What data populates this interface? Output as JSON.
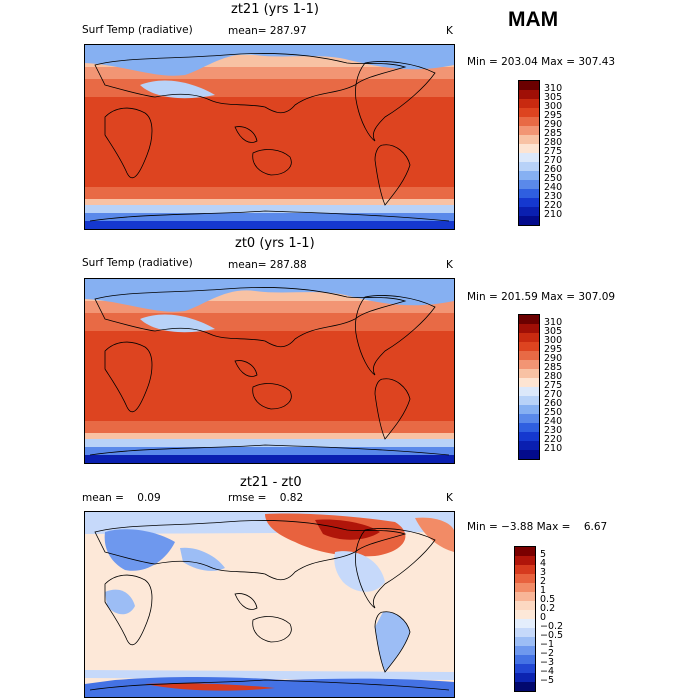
{
  "season": "MAM",
  "units": "K",
  "panels": [
    {
      "title": "zt21 (yrs 1-1)",
      "field": "Surf Temp (radiative)",
      "mean_text": "mean= 287.97",
      "minmax_text": "Min = 203.04 Max = 307.43",
      "kind": "abs",
      "colorbar_labels": [
        "310",
        "305",
        "300",
        "295",
        "290",
        "285",
        "280",
        "275",
        "270",
        "260",
        "250",
        "240",
        "230",
        "220",
        "210"
      ]
    },
    {
      "title": "zt0 (yrs 1-1)",
      "field": "Surf Temp (radiative)",
      "mean_text": "mean= 287.88",
      "minmax_text": "Min = 201.59 Max = 307.09",
      "kind": "abs",
      "colorbar_labels": [
        "310",
        "305",
        "300",
        "295",
        "290",
        "285",
        "280",
        "275",
        "270",
        "260",
        "250",
        "240",
        "230",
        "220",
        "210"
      ]
    },
    {
      "title": "zt21 - zt0",
      "mean_text": "mean =    0.09",
      "rmse_text": "rmse =    0.82",
      "minmax_text": "Min = −3.88 Max =    6.67",
      "kind": "diff",
      "colorbar_labels": [
        "5",
        "4",
        "3",
        "2",
        "1",
        "0.5",
        "0.2",
        "0",
        "−0.2",
        "−0.5",
        "−1",
        "−2",
        "−3",
        "−4",
        "−5"
      ]
    }
  ],
  "colors": {
    "abs_scale": [
      "#6b0000",
      "#a00f06",
      "#c82a10",
      "#dd4420",
      "#e86a45",
      "#f29574",
      "#f8c2a4",
      "#fde4d2",
      "#dce8fa",
      "#b8d2f8",
      "#86b0f2",
      "#5a89ea",
      "#2f5fe0",
      "#1538cf",
      "#0a1fb0",
      "#030b8c"
    ],
    "diff_scale": [
      "#7a0000",
      "#b0150a",
      "#d63a1e",
      "#e8623e",
      "#f28b66",
      "#f8b597",
      "#fcd8c2",
      "#fde8d8",
      "#e4eefc",
      "#c6d9fa",
      "#9cbdf5",
      "#6e98ee",
      "#4472e4",
      "#2247d3",
      "#0c24b0",
      "#02096e"
    ],
    "coastline": "#000000"
  }
}
